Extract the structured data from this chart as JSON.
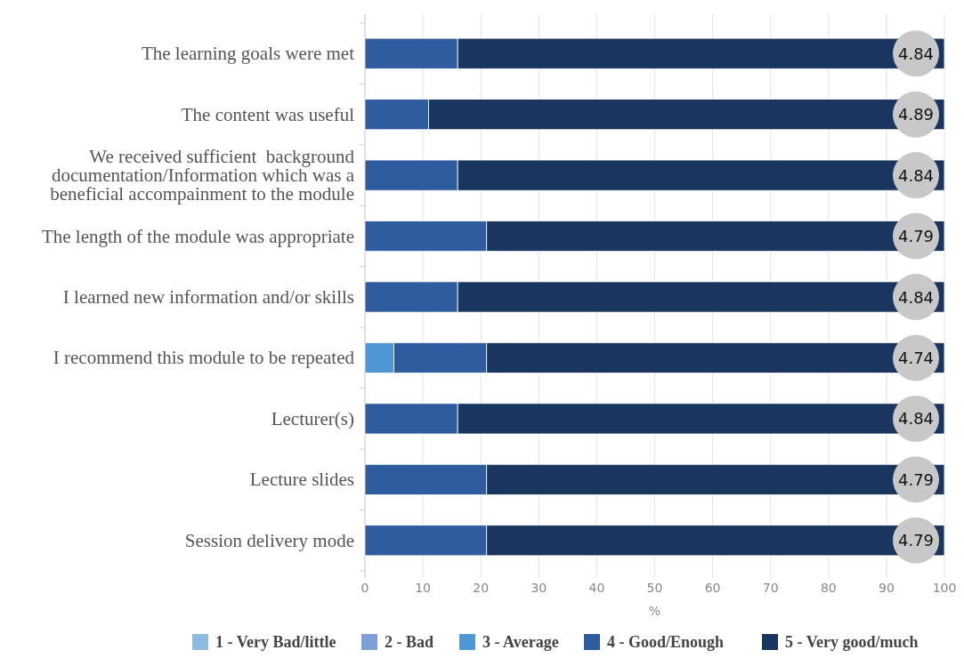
{
  "chart_data": {
    "type": "bar",
    "orientation": "horizontal",
    "stacked": true,
    "xlabel": "%",
    "categories": [
      "The learning goals were met",
      "The content was useful",
      "We received sufficient  background documentation/Information which was a beneficial accompainment to the module",
      "The length of the module was appropriate",
      "I learned new information and/or skills",
      "I recommend this module to be repeated",
      "Lecturer(s)",
      "Lecture slides",
      "Session delivery mode"
    ],
    "series": [
      {
        "name": "1 - Very Bad/little",
        "color": "#8dbbe0",
        "values": [
          0,
          0,
          0,
          0,
          0,
          0,
          0,
          0,
          0
        ]
      },
      {
        "name": "2 - Bad",
        "color": "#7fa0d6",
        "values": [
          0,
          0,
          0,
          0,
          0,
          0,
          0,
          0,
          0
        ]
      },
      {
        "name": "3 - Average",
        "color": "#4f97d3",
        "values": [
          0,
          0,
          0,
          0,
          0,
          5,
          0,
          0,
          0
        ]
      },
      {
        "name": "4 - Good/Enough",
        "color": "#2e5c9e",
        "values": [
          16,
          11,
          16,
          21,
          16,
          16,
          16,
          21,
          21
        ]
      },
      {
        "name": "5 - Very good/much",
        "color": "#1a365f",
        "values": [
          84,
          89,
          84,
          79,
          84,
          79,
          84,
          79,
          79
        ]
      }
    ],
    "xlim": [
      0,
      100
    ],
    "xticks": [
      0,
      10,
      20,
      30,
      40,
      50,
      60,
      70,
      80,
      90,
      100
    ],
    "grid": "x",
    "legend": "bottom",
    "annotations": [
      "4.84",
      "4.89",
      "4.84",
      "4.79",
      "4.84",
      "4.74",
      "4.84",
      "4.79",
      "4.79"
    ]
  }
}
